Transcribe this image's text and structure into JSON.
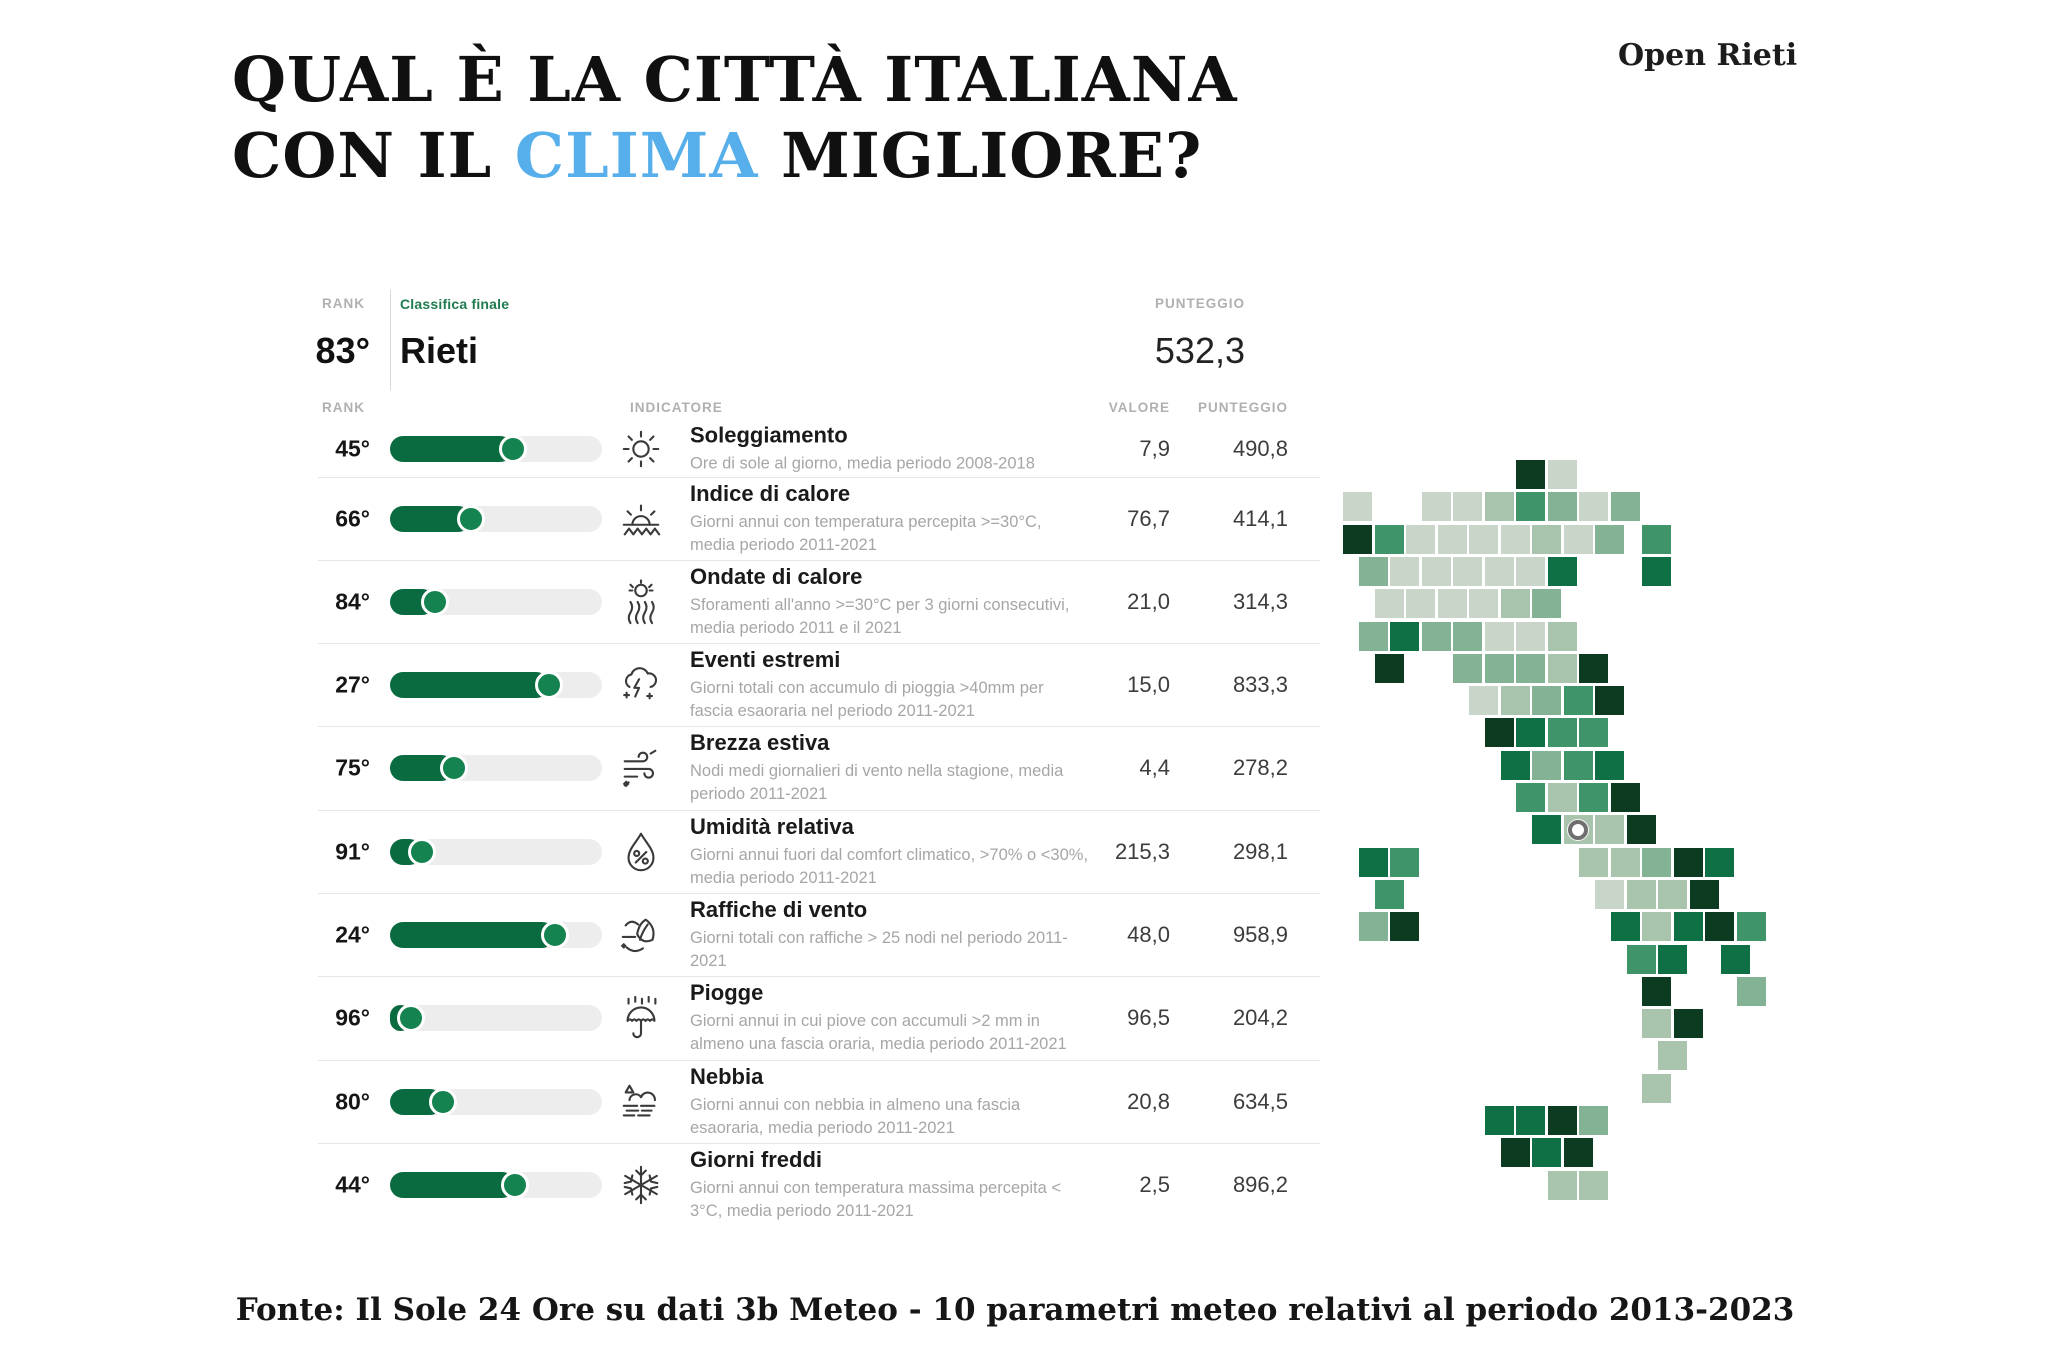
{
  "brand": "Open Rieti",
  "title": {
    "line1": "QUAL È LA CITTÀ ITALIANA",
    "line2_pre": "CON IL ",
    "line2_highlight": "CLIMA",
    "line2_post": " MIGLIORE?",
    "highlight_color": "#56aeea"
  },
  "summary": {
    "rank_label": "RANK",
    "list_label": "Classifica finale",
    "score_label": "PUNTEGGIO",
    "rank": "83°",
    "city": "Rieti",
    "score": "532,3"
  },
  "table_headers": {
    "rank": "RANK",
    "indicator": "INDICATORE",
    "value": "VALORE",
    "score": "PUNTEGGIO"
  },
  "indicators": [
    {
      "rank": "45°",
      "bar_pct": 58,
      "icon": "sun-icon",
      "name": "Soleggiamento",
      "desc": "Ore di sole al giorno, media periodo 2008-2018",
      "value": "7,9",
      "score": "490,8"
    },
    {
      "rank": "66°",
      "bar_pct": 38,
      "icon": "heat-index-icon",
      "name": "Indice di calore",
      "desc": "Giorni annui con temperatura percepita >=30°C, media periodo 2011-2021",
      "value": "76,7",
      "score": "414,1"
    },
    {
      "rank": "84°",
      "bar_pct": 21,
      "icon": "heat-wave-icon",
      "name": "Ondate di calore",
      "desc": "Sforamenti all'anno >=30°C per 3 giorni consecutivi, media periodo 2011 e il 2021",
      "value": "21,0",
      "score": "314,3"
    },
    {
      "rank": "27°",
      "bar_pct": 75,
      "icon": "storm-cloud-icon",
      "name": "Eventi estremi",
      "desc": "Giorni totali con accumulo di pioggia >40mm per fascia esaoraria nel periodo 2011-2021",
      "value": "15,0",
      "score": "833,3"
    },
    {
      "rank": "75°",
      "bar_pct": 30,
      "icon": "breeze-icon",
      "name": "Brezza estiva",
      "desc": "Nodi medi giornalieri di vento nella stagione, media periodo 2011-2021",
      "value": "4,4",
      "score": "278,2"
    },
    {
      "rank": "91°",
      "bar_pct": 15,
      "icon": "humidity-icon",
      "name": "Umidità relativa",
      "desc": "Giorni annui fuori dal comfort climatico, >70% o <30%, media periodo 2011-2021",
      "value": "215,3",
      "score": "298,1"
    },
    {
      "rank": "24°",
      "bar_pct": 78,
      "icon": "wind-gust-icon",
      "name": "Raffiche di vento",
      "desc": "Giorni totali con raffiche > 25 nodi nel periodo 2011-2021",
      "value": "48,0",
      "score": "958,9"
    },
    {
      "rank": "96°",
      "bar_pct": 10,
      "icon": "rain-umbrella-icon",
      "name": "Piogge",
      "desc": "Giorni annui in cui piove con accumuli >2 mm in almeno una fascia oraria, media periodo 2011-2021",
      "value": "96,5",
      "score": "204,2"
    },
    {
      "rank": "80°",
      "bar_pct": 25,
      "icon": "fog-icon",
      "name": "Nebbia",
      "desc": "Giorni annui con nebbia in almeno una fascia esaoraria, media periodo 2011-2021",
      "value": "20,8",
      "score": "634,5"
    },
    {
      "rank": "44°",
      "bar_pct": 59,
      "icon": "snowflake-icon",
      "name": "Giorni freddi",
      "desc": "Giorni annui con temperatura massima percepita < 3°C, media periodo 2011-2021",
      "value": "2,5",
      "score": "896,2"
    }
  ],
  "map": {
    "palette": [
      "#c9d5c9",
      "#a9c4ad",
      "#83b394",
      "#40946a",
      "#0e7044",
      "#0d3b22"
    ],
    "marker_cell": [
      7,
      11
    ],
    "cells": [
      [
        5.5,
        0,
        5
      ],
      [
        6.5,
        0,
        0
      ],
      [
        0,
        1,
        0
      ],
      [
        2.5,
        1,
        0
      ],
      [
        3.5,
        1,
        0
      ],
      [
        4.5,
        1,
        1
      ],
      [
        5.5,
        1,
        3
      ],
      [
        6.5,
        1,
        2
      ],
      [
        7.5,
        1,
        0
      ],
      [
        8.5,
        1,
        2
      ],
      [
        0,
        2,
        5
      ],
      [
        1,
        2,
        3
      ],
      [
        2,
        2,
        0
      ],
      [
        3,
        2,
        0
      ],
      [
        4,
        2,
        0
      ],
      [
        5,
        2,
        0
      ],
      [
        6,
        2,
        1
      ],
      [
        7,
        2,
        0
      ],
      [
        8,
        2,
        2
      ],
      [
        9.5,
        2,
        3
      ],
      [
        0.5,
        3,
        2
      ],
      [
        1.5,
        3,
        0
      ],
      [
        2.5,
        3,
        0
      ],
      [
        3.5,
        3,
        0
      ],
      [
        4.5,
        3,
        0
      ],
      [
        5.5,
        3,
        0
      ],
      [
        6.5,
        3,
        4
      ],
      [
        9.5,
        3,
        4
      ],
      [
        1,
        4,
        0
      ],
      [
        2,
        4,
        0
      ],
      [
        3,
        4,
        0
      ],
      [
        4,
        4,
        0
      ],
      [
        5,
        4,
        1
      ],
      [
        6,
        4,
        2
      ],
      [
        0.5,
        5,
        2
      ],
      [
        1.5,
        5,
        4
      ],
      [
        2.5,
        5,
        2
      ],
      [
        3.5,
        5,
        2
      ],
      [
        4.5,
        5,
        0
      ],
      [
        5.5,
        5,
        0
      ],
      [
        6.5,
        5,
        1
      ],
      [
        1,
        6,
        5
      ],
      [
        3.5,
        6,
        2
      ],
      [
        4.5,
        6,
        2
      ],
      [
        5.5,
        6,
        2
      ],
      [
        6.5,
        6,
        1
      ],
      [
        7.5,
        6,
        5
      ],
      [
        4,
        7,
        0
      ],
      [
        5,
        7,
        1
      ],
      [
        6,
        7,
        2
      ],
      [
        7,
        7,
        3
      ],
      [
        8,
        7,
        5
      ],
      [
        4.5,
        8,
        5
      ],
      [
        5.5,
        8,
        4
      ],
      [
        6.5,
        8,
        3
      ],
      [
        7.5,
        8,
        3
      ],
      [
        5,
        9,
        4
      ],
      [
        6,
        9,
        2
      ],
      [
        7,
        9,
        3
      ],
      [
        8,
        9,
        4
      ],
      [
        5.5,
        10,
        3
      ],
      [
        6.5,
        10,
        1
      ],
      [
        7.5,
        10,
        3
      ],
      [
        8.5,
        10,
        5
      ],
      [
        6,
        11,
        4
      ],
      [
        7,
        11,
        1
      ],
      [
        8,
        11,
        1
      ],
      [
        9,
        11,
        5
      ],
      [
        0.5,
        12,
        4
      ],
      [
        1.5,
        12,
        3
      ],
      [
        7.5,
        12,
        1
      ],
      [
        8.5,
        12,
        1
      ],
      [
        9.5,
        12,
        2
      ],
      [
        10.5,
        12,
        5
      ],
      [
        11.5,
        12,
        4
      ],
      [
        1,
        13,
        3
      ],
      [
        8,
        13,
        0
      ],
      [
        9,
        13,
        1
      ],
      [
        10,
        13,
        1
      ],
      [
        11,
        13,
        5
      ],
      [
        0.5,
        14,
        2
      ],
      [
        1.5,
        14,
        5
      ],
      [
        8.5,
        14,
        4
      ],
      [
        9.5,
        14,
        1
      ],
      [
        10.5,
        14,
        4
      ],
      [
        11.5,
        14,
        5
      ],
      [
        12.5,
        14,
        3
      ],
      [
        9,
        15,
        3
      ],
      [
        10,
        15,
        4
      ],
      [
        12,
        15,
        4
      ],
      [
        9.5,
        16,
        5
      ],
      [
        12.5,
        16,
        2
      ],
      [
        9.5,
        17,
        1
      ],
      [
        10.5,
        17,
        5
      ],
      [
        10,
        18,
        1
      ],
      [
        9.5,
        19,
        1
      ],
      [
        4.5,
        20,
        4
      ],
      [
        5.5,
        20,
        4
      ],
      [
        6.5,
        20,
        5
      ],
      [
        7.5,
        20,
        2
      ],
      [
        5,
        21,
        5
      ],
      [
        6,
        21,
        4
      ],
      [
        7,
        21,
        5
      ],
      [
        6.5,
        22,
        1
      ],
      [
        7.5,
        22,
        1
      ]
    ]
  },
  "footer": "Fonte: Il Sole 24 Ore su dati 3b Meteo - 10 parametri meteo relativi al periodo 2013-2023",
  "colors": {
    "accent_green": "#0a6b41",
    "knob_green": "#148350",
    "bar_track": "#ededed",
    "highlight_blue": "#56aeea",
    "label_green": "#1e7c50"
  }
}
